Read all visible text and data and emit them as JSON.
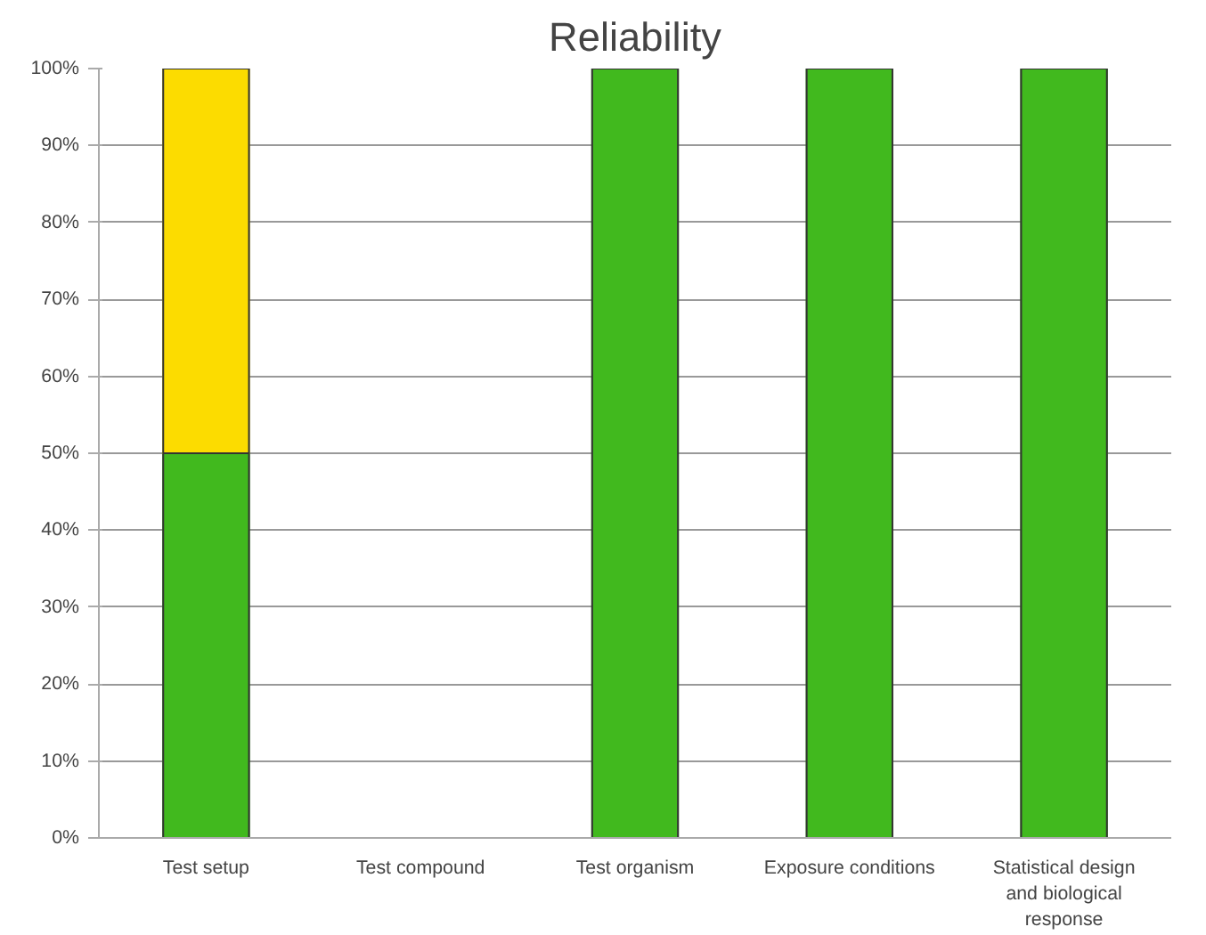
{
  "chart_data": {
    "type": "bar",
    "title": "Reliability",
    "stacked": true,
    "categories": [
      "Test setup",
      "Test compound",
      "Test organism",
      "Exposure conditions",
      "Statistical design and biological response"
    ],
    "series": [
      {
        "color": "#41b91e",
        "values": [
          50,
          null,
          100,
          100,
          100
        ]
      },
      {
        "color": "#fcdc00",
        "values": [
          50,
          null,
          null,
          null,
          null
        ]
      }
    ],
    "ylim": [
      0,
      100
    ],
    "yticks": [
      {
        "value": 0,
        "label": "0%"
      },
      {
        "value": 10,
        "label": "10%"
      },
      {
        "value": 20,
        "label": "20%"
      },
      {
        "value": 30,
        "label": "30%"
      },
      {
        "value": 40,
        "label": "40%"
      },
      {
        "value": 50,
        "label": "50%"
      },
      {
        "value": 60,
        "label": "60%"
      },
      {
        "value": 70,
        "label": "70%"
      },
      {
        "value": 80,
        "label": "80%"
      },
      {
        "value": 90,
        "label": "90%"
      },
      {
        "value": 100,
        "label": "100%"
      }
    ],
    "grid": "y"
  }
}
